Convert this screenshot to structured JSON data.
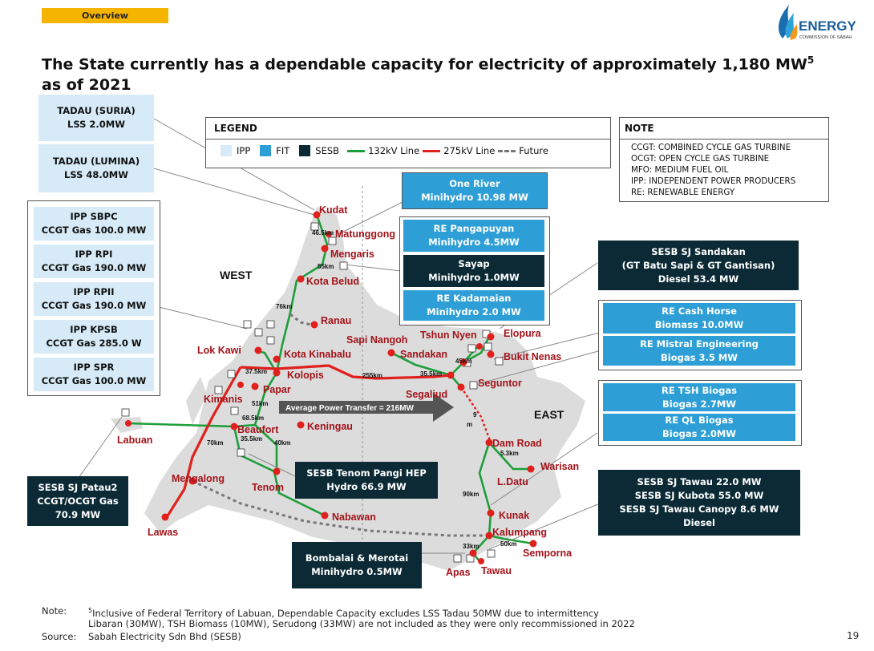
{
  "header": {
    "tag": "Overview",
    "title": "The State currently has a dependable capacity for electricity of approximately 1,180 MW",
    "title_sup": "5",
    "title_line2": "as of 2021",
    "logo_text": "ENERGY",
    "logo_sub": "COMMISSION OF SABAH"
  },
  "legend": {
    "title": "LEGEND",
    "items": [
      "IPP",
      "FIT",
      "SESB",
      "132kV Line",
      "275kV Line",
      "Future"
    ],
    "colors": {
      "ipp": "#d6ebf7",
      "fit": "#2e9fd6",
      "sesb": "#0b2a35",
      "line132": "#1e9e3a",
      "line275": "#e0201c",
      "future": "#777777"
    }
  },
  "note": {
    "title": "NOTE",
    "lines": [
      "CCGT: COMBINED CYCLE GAS TURBINE",
      "OCGT: OPEN CYCLE GAS TURBINE",
      "MFO: MEDIUM FUEL OIL",
      "IPP: INDEPENDENT POWER PRODUCERS",
      "RE: RENEWABLE ENERGY"
    ]
  },
  "boxes": {
    "tadau_suria": [
      "TADAU (SURIA)",
      "LSS 2.0MW"
    ],
    "tadau_lumina": [
      "TADAU (LUMINA)",
      "LSS 48.0MW"
    ],
    "ipp_sbpc": [
      "IPP  SBPC",
      "CCGT Gas 100.0 MW"
    ],
    "ipp_rpi": [
      "IPP  RPI",
      "CCGT Gas 190.0 MW"
    ],
    "ipp_rpii": [
      "IPP  RPII",
      "CCGT Gas 190.0 MW"
    ],
    "ipp_kpsb": [
      "IPP  KPSB",
      "CCGT Gas 285.0  W"
    ],
    "ipp_spr": [
      "IPP  SPR",
      "CCGT Gas 100.0 MW"
    ],
    "one_river": [
      "One River",
      "Minihydro 10.98 MW"
    ],
    "re_pangapuyan": [
      "RE Pangapuyan",
      "Minihydro 4.5MW"
    ],
    "sayap": [
      "Sayap",
      "Minihydro 1.0MW"
    ],
    "re_kadamaian": [
      "RE Kadamaian",
      "Minihydro 2.0 MW"
    ],
    "sesb_sandakan": [
      "SESB SJ Sandakan",
      "(GT Batu Sapi & GT Gantisan)",
      "Diesel 53.4 MW"
    ],
    "re_cash_horse": [
      "RE Cash Horse",
      "Biomass 10.0MW"
    ],
    "re_mistral": [
      "RE Mistral Engineering",
      "Biogas 3.5 MW"
    ],
    "re_tsh": [
      "RE TSH Biogas",
      "Biogas 2.7MW"
    ],
    "re_ql": [
      "RE QL Biogas",
      "Biogas 2.0MW"
    ],
    "sesb_tawau": [
      "SESB SJ Tawau 22.0 MW",
      "SESB SJ Kubota 55.0 MW",
      "SESB SJ Tawau Canopy 8.6 MW",
      "Diesel"
    ],
    "sesb_patau2": [
      "SESB SJ Patau2",
      "CCGT/OCGT Gas",
      "70.9 MW"
    ],
    "sesb_tenom": [
      "SESB Tenom Pangi HEP",
      "Hydro 66.9 MW"
    ],
    "bombalai": [
      "Bombalai & Merotai",
      "Minihydro 0.5MW"
    ]
  },
  "map": {
    "region_west": "WEST",
    "region_east": "EAST",
    "transfer": "Average Power Transfer = 216MW",
    "places": {
      "kudat": "Kudat",
      "matunggong": "Matunggong",
      "mengaris": "Mengaris",
      "kota_belud": "Kota Belud",
      "ranau": "Ranau",
      "lok_kawi": "Lok Kawi",
      "kota_kinabalu": "Kota Kinabalu",
      "kolopis": "Kolopis",
      "papar": "Papar",
      "kimanis": "Kimanis",
      "beaufort": "Beaufort",
      "keningau": "Keningau",
      "labuan": "Labuan",
      "mengalong": "Mengalong",
      "tenom": "Tenom",
      "nabawan": "Nabawan",
      "lawas": "Lawas",
      "sapi_nangoh": "Sapi Nangoh",
      "tshun_nyen": "Tshun Nyen",
      "elopura": "Elopura",
      "sandakan": "Sandakan",
      "bukit_nenas": "Bukit Nenas",
      "segaliud": "Segaliud",
      "seguntor": "Seguntor",
      "dam_road": "Dam Road",
      "warisan": "Warisan",
      "l_datu": "L.Datu",
      "kunak": "Kunak",
      "kalumpang": "Kalumpang",
      "semporna": "Semporna",
      "apas": "Apas",
      "tawau": "Tawau"
    },
    "distances": {
      "d46": "46.5km",
      "d55": "55km",
      "d76": "76km",
      "d37": "37.5km",
      "d51": "51km",
      "d68": "68.5km",
      "d35a": "35.5km",
      "d40": "40km",
      "d70": "70km",
      "d255": "255km",
      "d35b": "35.5km",
      "d45": "45km",
      "d5a": "5.3km",
      "d90": "90km",
      "d50": "50km",
      "d33": "33km",
      "d9": "9",
      "dm": "m"
    }
  },
  "footer": {
    "note_label": "Note:",
    "note_line1": "Inclusive of Federal Territory of Labuan, Dependable Capacity excludes LSS Tadau 50MW due to intermittency",
    "note_sup": "5",
    "note_line2": "Libaran (30MW), TSH Biomass (10MW), Serudong (33MW) are not included as they were only recommissioned in 2022",
    "source_label": "Source:",
    "source_text": "Sabah Electricity Sdn Bhd (SESB)",
    "page_number": "19"
  }
}
